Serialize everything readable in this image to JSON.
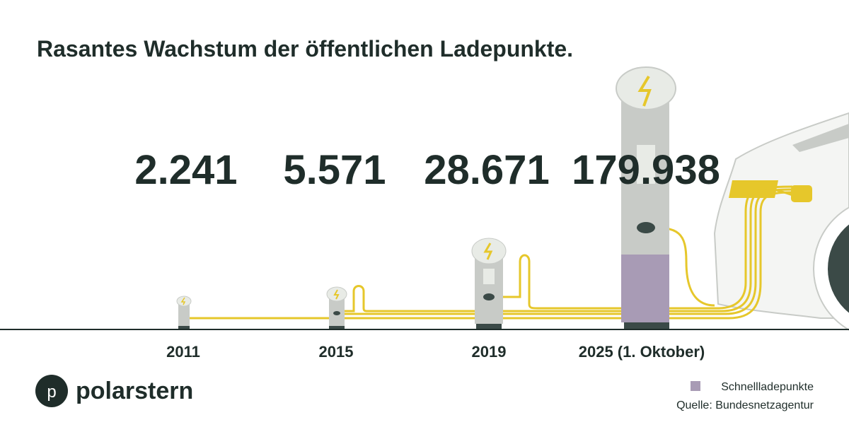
{
  "title": "Rasantes Wachstum der öffentlichen Ladepunkte.",
  "items": [
    {
      "value": "2.241",
      "year": "2011"
    },
    {
      "value": "5.571",
      "year": "2015"
    },
    {
      "value": "28.671",
      "year": "2019"
    },
    {
      "value": "179.938",
      "year": "2025 (1. Oktober)"
    }
  ],
  "logo": {
    "letter": "p",
    "name": "polarstern"
  },
  "legend": {
    "label": "Schnellladepunkte"
  },
  "source": "Quelle: Bundesnetzagentur"
}
